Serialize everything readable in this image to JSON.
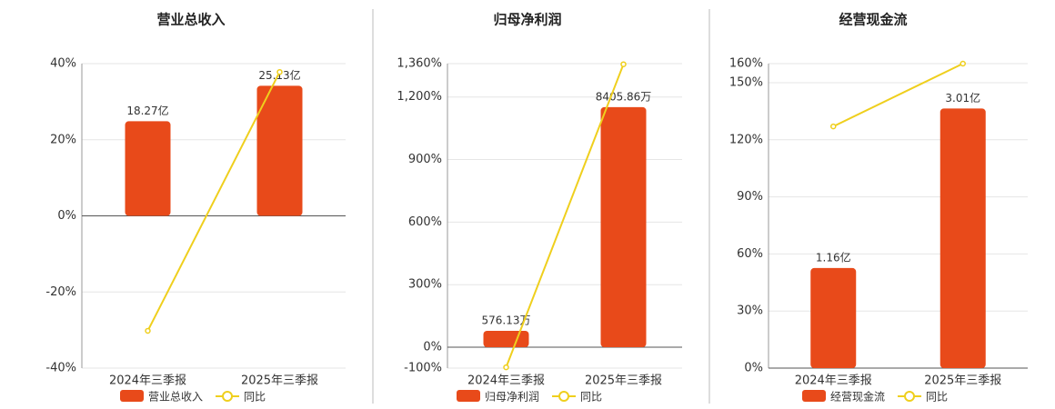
{
  "chart_data": [
    {
      "type": "bar-line",
      "title": "营业总收入",
      "categories": [
        "2024年三季报",
        "2025年三季报"
      ],
      "series": [
        {
          "name": "营业总收入",
          "type": "bar",
          "axis": "y2",
          "color": "#e84a1a",
          "values": [
            18.27,
            25.13
          ],
          "value_labels": [
            "18.27亿",
            "25.13亿"
          ]
        },
        {
          "name": "同比",
          "type": "line",
          "color": "#efcf1d",
          "values": [
            -30.2,
            37.8
          ]
        }
      ],
      "ylim": [
        -40,
        40
      ],
      "yticks": [
        {
          "value": -40,
          "label": "-40%"
        },
        {
          "value": -20,
          "label": "-20%"
        },
        {
          "value": 0,
          "label": "0%"
        },
        {
          "value": 20,
          "label": "20%"
        },
        {
          "value": 40,
          "label": "40%"
        }
      ],
      "y2lim": [
        -29.4,
        29.4
      ]
    },
    {
      "type": "bar-line",
      "title": "归母净利润",
      "categories": [
        "2024年三季报",
        "2025年三季报"
      ],
      "series": [
        {
          "name": "归母净利润",
          "type": "bar",
          "axis": "y2",
          "color": "#e84a1a",
          "values": [
            576.13,
            8405.86
          ],
          "value_labels": [
            "576.13万",
            "8405.86万"
          ]
        },
        {
          "name": "同比",
          "type": "line",
          "color": "#efcf1d",
          "values": [
            -96,
            1357
          ]
        }
      ],
      "ylim": [
        -100,
        1360
      ],
      "yticks": [
        {
          "value": -100,
          "label": "-100%"
        },
        {
          "value": 0,
          "label": "0%"
        },
        {
          "value": 300,
          "label": "300%"
        },
        {
          "value": 600,
          "label": "600%"
        },
        {
          "value": 900,
          "label": "900%"
        },
        {
          "value": 1200,
          "label": "1,200%"
        },
        {
          "value": 1360,
          "label": "1,360%"
        }
      ],
      "y2lim": [
        -730,
        9928
      ]
    },
    {
      "type": "bar-line",
      "title": "经营现金流",
      "categories": [
        "2024年三季报",
        "2025年三季报"
      ],
      "series": [
        {
          "name": "经营现金流",
          "type": "bar",
          "axis": "y2",
          "color": "#e84a1a",
          "values": [
            1.16,
            3.01
          ],
          "value_labels": [
            "1.16亿",
            "3.01亿"
          ]
        },
        {
          "name": "同比",
          "type": "line",
          "color": "#efcf1d",
          "values": [
            127,
            160
          ]
        }
      ],
      "ylim": [
        0,
        160
      ],
      "yticks": [
        {
          "value": 0,
          "label": "0%"
        },
        {
          "value": 30,
          "label": "30%"
        },
        {
          "value": 60,
          "label": "60%"
        },
        {
          "value": 90,
          "label": "90%"
        },
        {
          "value": 120,
          "label": "120%"
        },
        {
          "value": 150,
          "label": "150%"
        },
        {
          "value": 160,
          "label": "160%"
        }
      ],
      "y2lim": [
        0,
        3.53
      ]
    }
  ]
}
